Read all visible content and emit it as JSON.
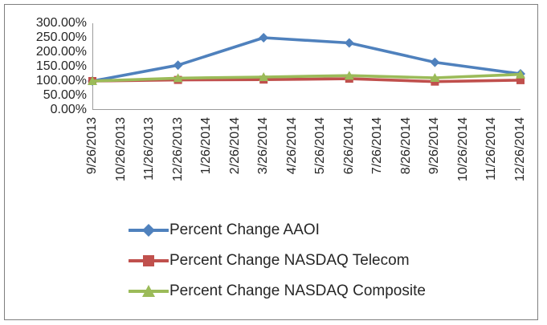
{
  "chart_data": {
    "type": "line",
    "title": "",
    "xlabel": "",
    "ylabel": "",
    "ylim": [
      0,
      300
    ],
    "grid": false,
    "legend_position": "bottom-left",
    "y_ticks": [
      "300.00%",
      "250.00%",
      "200.00%",
      "150.00%",
      "100.00%",
      "50.00%",
      "0.00%"
    ],
    "categories": [
      "9/26/2013",
      "10/26/2013",
      "11/26/2013",
      "12/26/2013",
      "1/26/2014",
      "2/26/2014",
      "3/26/2014",
      "4/26/2014",
      "5/26/2014",
      "6/26/2014",
      "7/26/2014",
      "8/26/2014",
      "9/26/2014",
      "10/26/2014",
      "11/26/2014",
      "12/26/2014"
    ],
    "point_x_indices": [
      0,
      3,
      6,
      9,
      12,
      15
    ],
    "series": [
      {
        "name": "Percent Change AAOI",
        "color": "#4F81BD",
        "marker": "diamond",
        "values_percent": [
          100,
          155,
          250,
          232,
          165,
          125
        ]
      },
      {
        "name": "Percent Change NASDAQ Telecom",
        "color": "#C0504D",
        "marker": "square",
        "values_percent": [
          100,
          104,
          105,
          108,
          98,
          103
        ]
      },
      {
        "name": "Percent Change NASDAQ Composite",
        "color": "#9BBB59",
        "marker": "triangle",
        "values_percent": [
          100,
          110,
          114,
          119,
          111,
          123
        ]
      }
    ],
    "axis_color": "#9c9c9c",
    "frame_border_color": "#7f7f7f",
    "text_color": "#262626"
  }
}
